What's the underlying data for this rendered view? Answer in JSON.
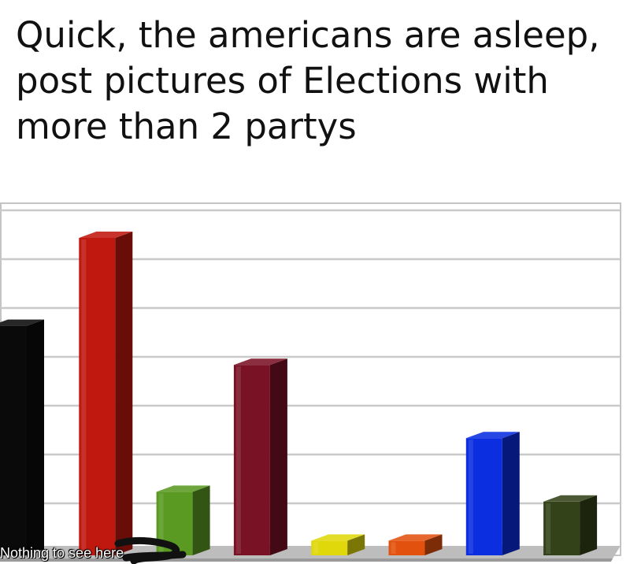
{
  "meme": {
    "caption": "Quick, the americans are asleep, post pictures of Elections with more than 2 partys"
  },
  "watermark": {
    "text": "Nothing to see here"
  },
  "chart_data": {
    "type": "bar",
    "grid": true,
    "ylim": [
      0,
      8
    ],
    "values": [
      4.7,
      6.5,
      1.3,
      3.9,
      0.3,
      0.3,
      2.4,
      1.1
    ],
    "colors": [
      "#0a0a0a",
      "#c0180e",
      "#5a9a22",
      "#7a1226",
      "#e0d80a",
      "#e2520e",
      "#0a2ee0",
      "#34421a"
    ]
  }
}
